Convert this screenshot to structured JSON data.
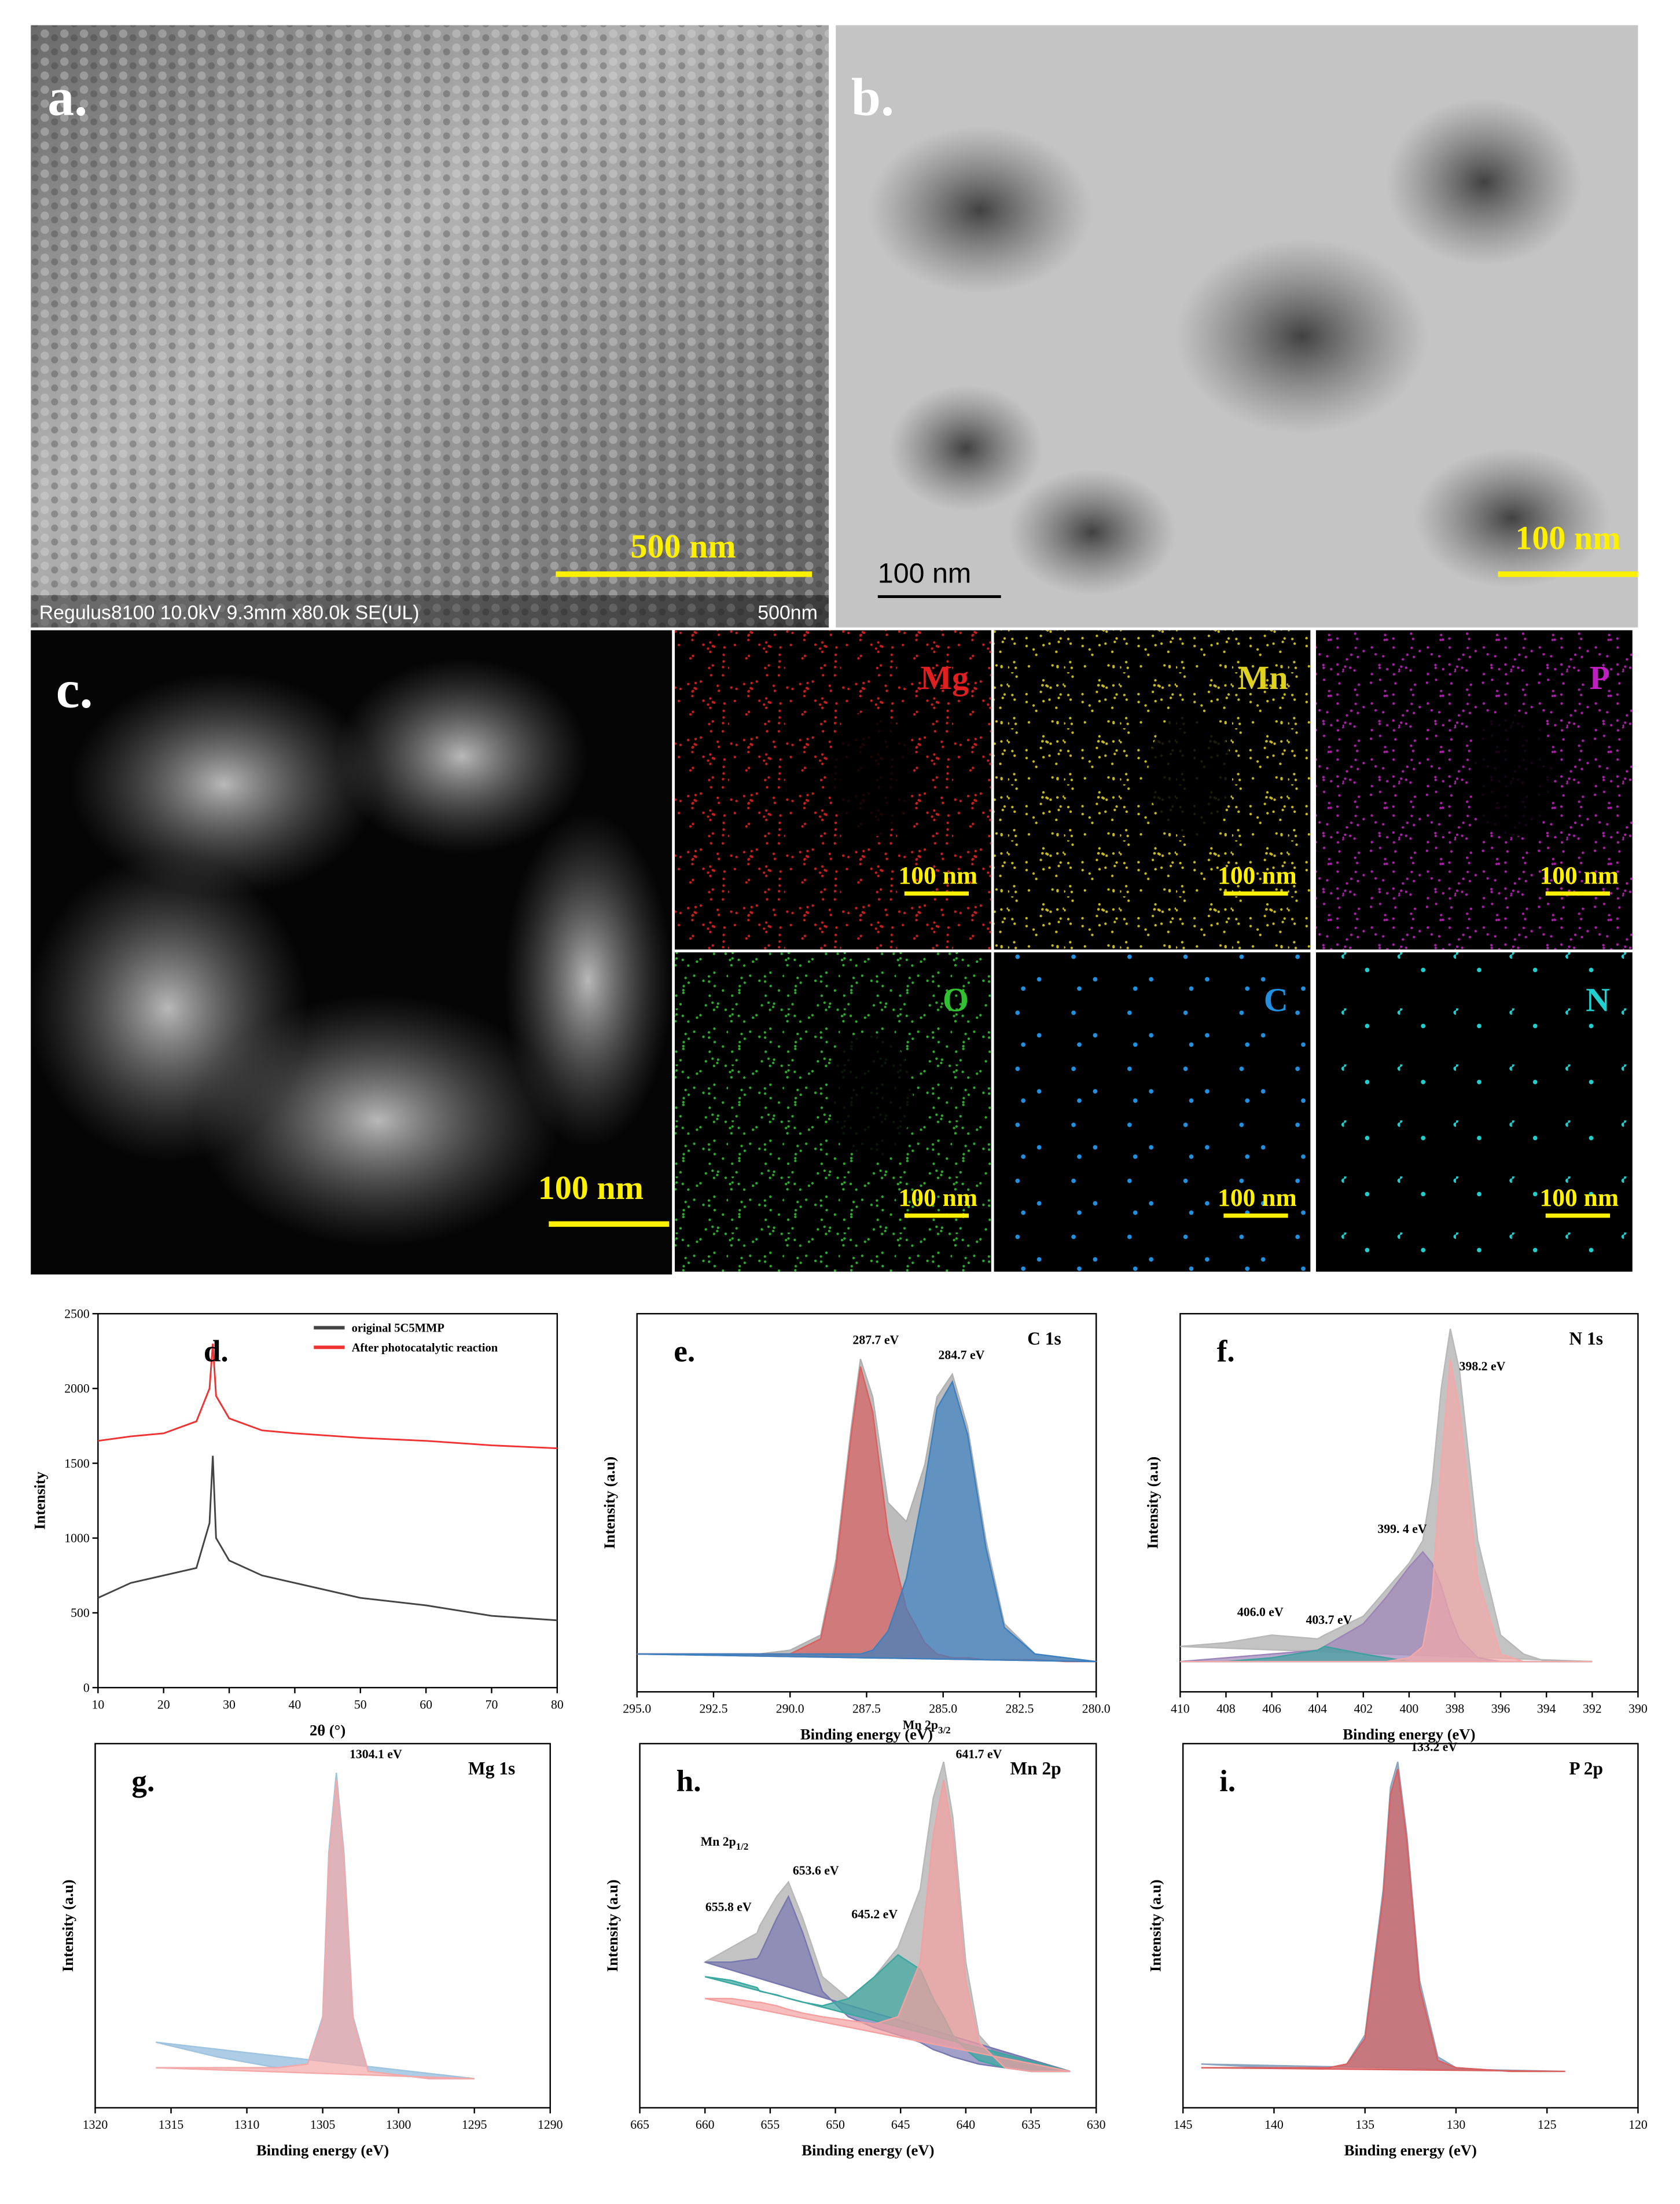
{
  "panels": {
    "a": {
      "label": "a.",
      "scale_bar": "500 nm",
      "footer": "Regulus8100 10.0kV 9.3mm x80.0k SE(UL)",
      "footer_scale": "500nm"
    },
    "b": {
      "label": "b.",
      "scale_bar": "100 nm",
      "inset_scale": "100 nm"
    },
    "c": {
      "label": "c.",
      "scale_bar": "100 nm",
      "maps": [
        {
          "element": "Mg",
          "color": "#e02020",
          "scale_bar": "100 nm"
        },
        {
          "element": "Mn",
          "color": "#e0d020",
          "scale_bar": "100 nm"
        },
        {
          "element": "P",
          "color": "#c020c0",
          "scale_bar": "100 nm"
        },
        {
          "element": "O",
          "color": "#30c030",
          "scale_bar": "100 nm"
        },
        {
          "element": "C",
          "color": "#2090e0",
          "scale_bar": "100 nm"
        },
        {
          "element": "N",
          "color": "#20d0d0",
          "scale_bar": "100 nm"
        }
      ]
    }
  },
  "chart_data": [
    {
      "type": "line",
      "panel": "d.",
      "xlabel": "2θ (°)",
      "ylabel": "Intensity",
      "xlim": [
        10,
        80
      ],
      "xticks": [
        10,
        20,
        30,
        40,
        50,
        60,
        70,
        80
      ],
      "ylim": [
        0,
        2500
      ],
      "yticks": [
        0,
        500,
        1000,
        1500,
        2000,
        2500
      ],
      "legend": "upper right",
      "x": [
        10,
        15,
        20,
        25,
        27,
        27.5,
        28,
        30,
        35,
        40,
        50,
        60,
        70,
        80
      ],
      "series": [
        {
          "name": "original 5C5MMP",
          "color": "#444444",
          "values": [
            600,
            700,
            750,
            800,
            1100,
            1550,
            1000,
            850,
            750,
            700,
            600,
            550,
            480,
            450
          ]
        },
        {
          "name": "After photocatalytic reaction",
          "color": "#ee3333",
          "values": [
            1650,
            1680,
            1700,
            1780,
            2000,
            2300,
            1950,
            1800,
            1720,
            1700,
            1670,
            1650,
            1620,
            1600
          ]
        }
      ]
    },
    {
      "type": "area",
      "panel": "e.",
      "label": "C 1s",
      "xlabel": "Binding energy (eV)",
      "ylabel": "Intensity (a.u)",
      "xlim": [
        295,
        280
      ],
      "xticks": [
        {
          "value": 295,
          "label": "295.0"
        },
        292.5,
        {
          "value": 290,
          "label": "290.0"
        },
        287.5,
        {
          "value": 285,
          "label": "285.0"
        },
        282.5,
        {
          "value": 280,
          "label": "280.0"
        }
      ],
      "ylim": [
        0,
        100
      ],
      "x": [
        295,
        293,
        291,
        290,
        289,
        288.5,
        288,
        287.7,
        287.3,
        286.8,
        286.2,
        285.6,
        285.2,
        284.7,
        284.2,
        283.6,
        283,
        282,
        281,
        280
      ],
      "series": [
        {
          "color": "#b0b0b0",
          "values": [
            10,
            10,
            10,
            11,
            15,
            35,
            70,
            88,
            78,
            50,
            45,
            60,
            78,
            84,
            70,
            40,
            18,
            10,
            9,
            8
          ]
        },
        {
          "color": "#d9605f",
          "values": [
            10,
            10,
            10,
            10,
            14,
            33,
            68,
            86,
            74,
            42,
            22,
            13,
            10,
            9,
            9,
            8.5,
            8.5,
            8.5,
            8,
            8
          ]
        },
        {
          "color": "#3c80c0",
          "values": [
            10,
            10,
            10,
            10,
            10,
            10,
            10,
            10,
            11,
            16,
            30,
            55,
            75,
            82,
            68,
            38,
            17,
            10,
            9,
            8
          ]
        }
      ],
      "annotations": [
        {
          "text": "287.7 eV",
          "x": 287.2,
          "y": 92
        },
        {
          "text": "284.7 eV",
          "x": 284.4,
          "y": 88
        }
      ]
    },
    {
      "type": "area",
      "panel": "f.",
      "label": "N 1s",
      "xlabel": "Binding energy (eV)",
      "ylabel": "Intensity (a.u)",
      "xlim": [
        410,
        390
      ],
      "xticks": [
        410,
        408,
        406,
        404,
        402,
        400,
        398,
        396,
        394,
        392,
        390
      ],
      "ylim": [
        0,
        100
      ],
      "x": [
        410,
        408,
        406,
        404,
        403.7,
        402,
        401,
        400,
        399.4,
        399,
        398.6,
        398.2,
        397.8,
        397,
        396,
        395,
        394,
        392
      ],
      "series": [
        {
          "color": "#b8b8b8",
          "values": [
            12,
            13,
            15,
            14,
            15,
            20,
            27,
            34,
            40,
            55,
            80,
            96,
            85,
            40,
            15,
            10,
            8,
            8
          ]
        },
        {
          "color": "#9c84b8",
          "values": [
            8,
            9,
            10,
            11,
            12,
            18,
            25,
            33,
            37,
            34,
            28,
            20,
            14,
            9,
            8,
            8,
            8,
            8
          ]
        },
        {
          "color": "#40a0a0",
          "values": [
            8,
            8,
            9,
            11,
            12,
            10,
            9,
            8,
            8,
            8,
            8,
            8,
            8,
            8,
            8,
            8,
            8,
            8
          ]
        },
        {
          "color": "#f4a8a8",
          "values": [
            8,
            8,
            8,
            8,
            8,
            8,
            8,
            9,
            12,
            25,
            60,
            88,
            75,
            30,
            10,
            8,
            8,
            8
          ]
        }
      ],
      "annotations": [
        {
          "text": "406.0 eV",
          "x": 406.5,
          "y": 20
        },
        {
          "text": "403.7 eV",
          "x": 403.5,
          "y": 18
        },
        {
          "text": "399. 4 eV",
          "x": 400.3,
          "y": 42
        },
        {
          "text": "398.2 eV",
          "x": 396.8,
          "y": 85
        }
      ]
    },
    {
      "type": "area",
      "panel": "g.",
      "label": "Mg 1s",
      "xlabel": "Binding energy (eV)",
      "ylabel": "Intensity (a.u)",
      "xlim": [
        1320,
        1290
      ],
      "xticks": [
        1320,
        1315,
        1310,
        1305,
        1300,
        1295,
        1290
      ],
      "ylim": [
        0,
        100
      ],
      "x": [
        1316,
        1312,
        1308,
        1306,
        1305,
        1304.6,
        1304.1,
        1303.6,
        1303,
        1302,
        1300,
        1298,
        1295
      ],
      "series": [
        {
          "color": "#9ec4e0",
          "values": [
            18,
            14,
            11,
            12,
            25,
            70,
            92,
            70,
            25,
            10,
            9,
            8,
            8
          ]
        },
        {
          "color": "#f4a8a8",
          "values": [
            11,
            11,
            11,
            12,
            24,
            68,
            90,
            68,
            24,
            10,
            9,
            8,
            8
          ]
        }
      ],
      "annotations": [
        {
          "text": "1304.1 eV",
          "x": 1301.5,
          "y": 96
        }
      ]
    },
    {
      "type": "area",
      "panel": "h.",
      "label": "Mn 2p",
      "xlabel": "Binding energy (eV)",
      "ylabel": "Intensity (a.u)",
      "xlim": [
        665,
        630
      ],
      "xticks": [
        665,
        660,
        655,
        650,
        645,
        640,
        635,
        630
      ],
      "ylim": [
        0,
        100
      ],
      "x": [
        660,
        658,
        656,
        655.8,
        654.5,
        653.6,
        652.5,
        651,
        649,
        647,
        645.2,
        643.5,
        642.5,
        641.7,
        641,
        640,
        639,
        637,
        635,
        632
      ],
      "series": [
        {
          "color": "#b8b8b8",
          "values": [
            40,
            44,
            48,
            50,
            58,
            62,
            52,
            36,
            30,
            36,
            44,
            60,
            85,
            95,
            80,
            40,
            20,
            12,
            10,
            10
          ]
        },
        {
          "color": "#7878b0",
          "values": [
            40,
            40,
            41,
            42,
            52,
            58,
            48,
            32,
            25,
            22,
            20,
            18,
            16,
            15,
            14,
            13,
            12,
            11,
            10,
            10
          ]
        },
        {
          "color": "#3aa8a0",
          "values": [
            36,
            35,
            33,
            32,
            31,
            30,
            29,
            28,
            30,
            36,
            42,
            38,
            30,
            25,
            20,
            16,
            13,
            11,
            10,
            10
          ]
        },
        {
          "color": "#f4a0a0",
          "values": [
            30,
            30,
            29,
            29,
            28,
            27,
            26,
            25,
            24,
            23,
            25,
            40,
            75,
            90,
            75,
            35,
            18,
            11,
            10,
            10
          ]
        }
      ],
      "annotations": [
        {
          "text": "Mn 2p",
          "sub": "1/2",
          "x": 658.5,
          "y": 72
        },
        {
          "text": "653.6 eV",
          "x": 651.5,
          "y": 64
        },
        {
          "text": "655.8 eV",
          "x": 658.2,
          "y": 54
        },
        {
          "text": "645.2 eV",
          "x": 647,
          "y": 52
        },
        {
          "text": "Mn 2p",
          "sub": "3/2",
          "x": 643,
          "y": 104
        },
        {
          "text": "641.7 eV",
          "x": 639,
          "y": 96
        }
      ]
    },
    {
      "type": "area",
      "panel": "i.",
      "label": "P 2p",
      "xlabel": "Binding energy (eV)",
      "ylabel": "Intensity (a.u)",
      "xlim": [
        145,
        120
      ],
      "xticks": [
        145,
        140,
        135,
        130,
        125,
        120
      ],
      "ylim": [
        0,
        100
      ],
      "x": [
        144,
        140,
        137,
        136,
        135,
        134,
        133.6,
        133.2,
        132.7,
        132,
        131,
        130,
        127,
        124
      ],
      "series": [
        {
          "color": "#8aa4c0",
          "values": [
            12,
            11,
            11,
            12,
            20,
            60,
            88,
            95,
            75,
            35,
            14,
            11,
            10,
            10
          ]
        },
        {
          "color": "#d9605f",
          "values": [
            11,
            11,
            11,
            12,
            19,
            58,
            86,
            93,
            73,
            33,
            13,
            11,
            10,
            10
          ]
        }
      ],
      "annotations": [
        {
          "text": "133.2 eV",
          "x": 131.2,
          "y": 98
        }
      ]
    }
  ]
}
